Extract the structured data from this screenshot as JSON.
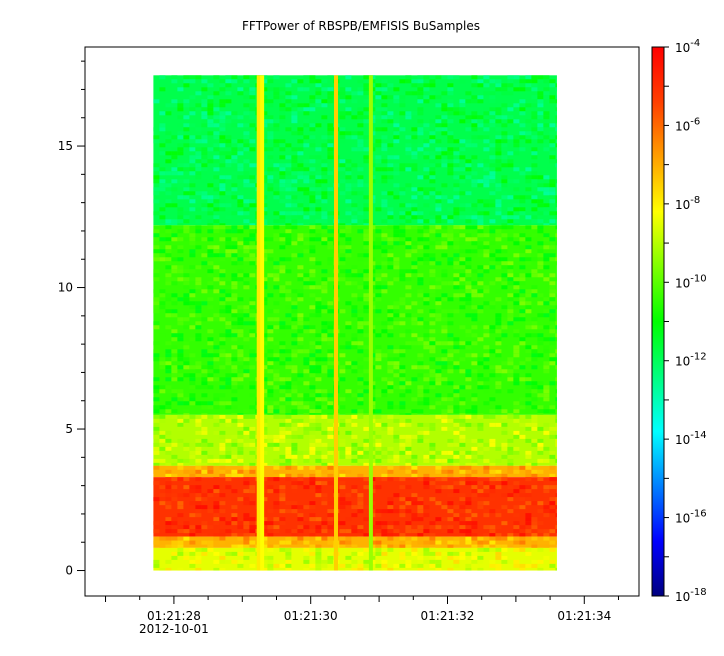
{
  "chart_data": {
    "type": "heatmap",
    "title": "FFTPower of RBSPB/EMFISIS  BuSamples",
    "xlabel": "",
    "ylabel": "",
    "x_ticks": [
      {
        "time": "01:21:28",
        "label": "01:21:28",
        "sublabel": "2012-10-01"
      },
      {
        "time": "01:21:30",
        "label": "01:21:30",
        "sublabel": ""
      },
      {
        "time": "01:21:32",
        "label": "01:21:32",
        "sublabel": ""
      },
      {
        "time": "01:21:34",
        "label": "01:21:34",
        "sublabel": ""
      }
    ],
    "x_range": [
      "01:21:26.7",
      "01:21:34.8"
    ],
    "data_extent": {
      "x": [
        "01:21:27.7",
        "01:21:33.6"
      ],
      "y": [
        0,
        17.5
      ]
    },
    "y_ticks": [
      0,
      5,
      10,
      15
    ],
    "ylim": [
      -0.9,
      18.5
    ],
    "colorbar": {
      "scale": "log",
      "range": [
        1e-18,
        0.0001
      ],
      "ticks": [
        {
          "base": "10",
          "exp": "-4"
        },
        {
          "base": "10",
          "exp": "-6"
        },
        {
          "base": "10",
          "exp": "-8"
        },
        {
          "base": "10",
          "exp": "-10"
        },
        {
          "base": "10",
          "exp": "-12"
        },
        {
          "base": "10",
          "exp": "-14"
        },
        {
          "base": "10",
          "exp": "-16"
        },
        {
          "base": "10",
          "exp": "-18"
        }
      ],
      "colors": [
        "#00007f",
        "#0000ff",
        "#007fff",
        "#00ffff",
        "#00ff7f",
        "#00ff00",
        "#7fff00",
        "#ffff00",
        "#ff9f00",
        "#ff3f00",
        "#ff0000"
      ]
    },
    "bands": [
      {
        "y": [
          12.2,
          17.5
        ],
        "level": 0.44
      },
      {
        "y": [
          5.5,
          12.2
        ],
        "level": 0.54
      },
      {
        "y": [
          3.7,
          5.5
        ],
        "level": 0.64
      },
      {
        "y": [
          3.3,
          3.7
        ],
        "level": 0.78
      },
      {
        "y": [
          1.2,
          3.3
        ],
        "level": 0.92
      },
      {
        "y": [
          0.8,
          1.2
        ],
        "level": 0.78
      },
      {
        "y": [
          0,
          0.8
        ],
        "level": 0.68
      }
    ],
    "vertical_streaks": [
      {
        "time": "01:21:29.24",
        "y": [
          0,
          17.5
        ],
        "level": 0.72
      },
      {
        "time": "01:21:29.29",
        "y": [
          0,
          17.5
        ],
        "level": 0.7
      },
      {
        "time": "01:21:30.37",
        "y": [
          0,
          17.5
        ],
        "level": 0.75
      },
      {
        "time": "01:21:30.88",
        "y": [
          0,
          17.5
        ],
        "level": 0.62
      }
    ]
  }
}
